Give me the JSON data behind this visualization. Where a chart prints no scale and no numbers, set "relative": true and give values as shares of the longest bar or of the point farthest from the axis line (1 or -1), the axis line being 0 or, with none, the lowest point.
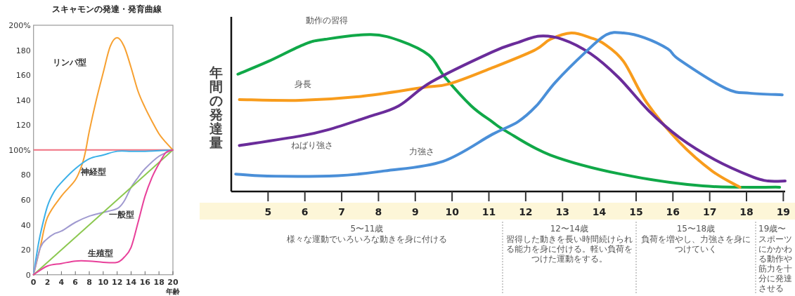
{
  "chart_data": [
    {
      "type": "line",
      "title": "スキャモンの発達・発育曲線",
      "xlabel": "年齢",
      "xlim": [
        0,
        20
      ],
      "xticks": [
        0,
        2,
        4,
        6,
        8,
        10,
        12,
        14,
        16,
        18,
        20
      ],
      "ylim": [
        0,
        200
      ],
      "yticks": [
        0,
        20,
        40,
        60,
        80,
        {
          "value": 100,
          "label": "100%"
        },
        120,
        140,
        160,
        180,
        {
          "value": 200,
          "label": "200%"
        }
      ],
      "grid": false,
      "ref_lines": [
        {
          "axis": "y",
          "value": 100,
          "label": null,
          "color": "#f07080"
        }
      ],
      "series": [
        {
          "name": "リンパ型",
          "color": "#f7a030",
          "x": [
            0,
            1,
            2,
            4,
            6,
            7,
            7.5,
            8,
            9,
            10,
            11,
            12,
            13,
            14,
            15,
            16,
            17,
            18,
            19,
            20
          ],
          "values": [
            0,
            23,
            46,
            63,
            76,
            89,
            100,
            115,
            140,
            162,
            183,
            190,
            183,
            166,
            147,
            134,
            123,
            113,
            106,
            100
          ]
        },
        {
          "name": "神経型",
          "color": "#3bb0e8",
          "x": [
            0,
            0.5,
            1,
            2,
            3,
            4,
            6,
            8,
            10,
            12,
            14,
            16,
            20
          ],
          "values": [
            0,
            18,
            33,
            55,
            67,
            74,
            85,
            93,
            96,
            99,
            99,
            99,
            100
          ]
        },
        {
          "name": "一般型",
          "color": "#a09ad0",
          "x": [
            0,
            1,
            2,
            3,
            4,
            6,
            8,
            10,
            12,
            13,
            14,
            15,
            16,
            18,
            20
          ],
          "values": [
            0,
            22,
            29,
            33,
            35,
            42,
            47,
            50,
            53,
            59,
            70,
            78,
            85,
            95,
            100
          ]
        },
        {
          "color": "#8cc850",
          "x": [
            0,
            20
          ],
          "values": [
            0,
            100
          ]
        },
        {
          "name": "生殖型",
          "color": "#e8409a",
          "x": [
            0,
            2,
            4,
            6,
            8,
            10,
            12,
            13,
            14,
            15,
            16,
            17,
            18,
            19,
            20
          ],
          "values": [
            0,
            7,
            9,
            11,
            11,
            10,
            10,
            14,
            22,
            42,
            63,
            78,
            89,
            98,
            100
          ]
        }
      ]
    },
    {
      "type": "line",
      "relative": true,
      "ylabel": "年間の発達量",
      "xlim": [
        4,
        19.05
      ],
      "xticks": [
        5,
        6,
        7,
        8,
        9,
        10,
        11,
        12,
        13,
        14,
        15,
        16,
        17,
        18,
        19
      ],
      "grid": false,
      "series": [
        {
          "name": "動作の習得",
          "color": "#10a848",
          "x": [
            4.18,
            5,
            6,
            6.55,
            7.79,
            8.6,
            9.37,
            9.81,
            10.52,
            11.09,
            11.47,
            12.67,
            14.58,
            16.81,
            18.9
          ],
          "values": [
            0.74,
            0.82,
            0.93,
            0.96,
            0.99,
            0.95,
            0.86,
            0.72,
            0.54,
            0.44,
            0.38,
            0.23,
            0.11,
            0.035,
            0.027
          ]
        },
        {
          "name": "身長",
          "color": "#f89c1c",
          "x": [
            4.22,
            5.88,
            7.52,
            9.18,
            9.94,
            11.09,
            12.23,
            12.67,
            13.24,
            13.76,
            14.14,
            14.66,
            15.29,
            16.18,
            17.06,
            17.82
          ],
          "values": [
            0.58,
            0.575,
            0.6,
            0.655,
            0.68,
            0.78,
            0.89,
            0.96,
            1.0,
            0.97,
            0.93,
            0.82,
            0.56,
            0.31,
            0.13,
            0.027
          ]
        },
        {
          "name": "ねばり強さ",
          "color": "#6a2c9a",
          "x": [
            4.22,
            5.88,
            6.64,
            7.71,
            8.55,
            9.43,
            11.09,
            11.79,
            12.37,
            13.0,
            13.76,
            14.52,
            15.34,
            16.18,
            17.14,
            18.15,
            18.59,
            19.05
          ],
          "values": [
            0.29,
            0.35,
            0.39,
            0.47,
            0.54,
            0.69,
            0.88,
            0.94,
            0.98,
            0.96,
            0.87,
            0.72,
            0.51,
            0.34,
            0.2,
            0.093,
            0.066,
            0.066
          ]
        },
        {
          "name": "力強さ",
          "color": "#4a8fd8",
          "x": [
            4.12,
            4.98,
            6.89,
            8.17,
            9.75,
            11.09,
            11.79,
            12.29,
            12.81,
            13.63,
            14.2,
            14.66,
            15.23,
            15.86,
            16.18,
            17.44,
            18.09,
            18.97
          ],
          "values": [
            0.11,
            0.097,
            0.1,
            0.13,
            0.19,
            0.36,
            0.44,
            0.54,
            0.69,
            0.88,
            0.99,
            1.0,
            0.97,
            0.9,
            0.83,
            0.65,
            0.62,
            0.61
          ]
        }
      ],
      "annotations": [
        "5〜11歳",
        "様々な運動でいろいろな動きを身に付ける",
        "12〜14歳",
        "習得した動きを長い時間続けられる能力を身に付ける。軽い負荷をつけた運動をする。",
        "15〜18歳",
        "負荷を増やし、力強さを身につけていく",
        "19歳〜",
        "スポーツにかかわる動作や筋力を十分に発達させる"
      ]
    }
  ]
}
